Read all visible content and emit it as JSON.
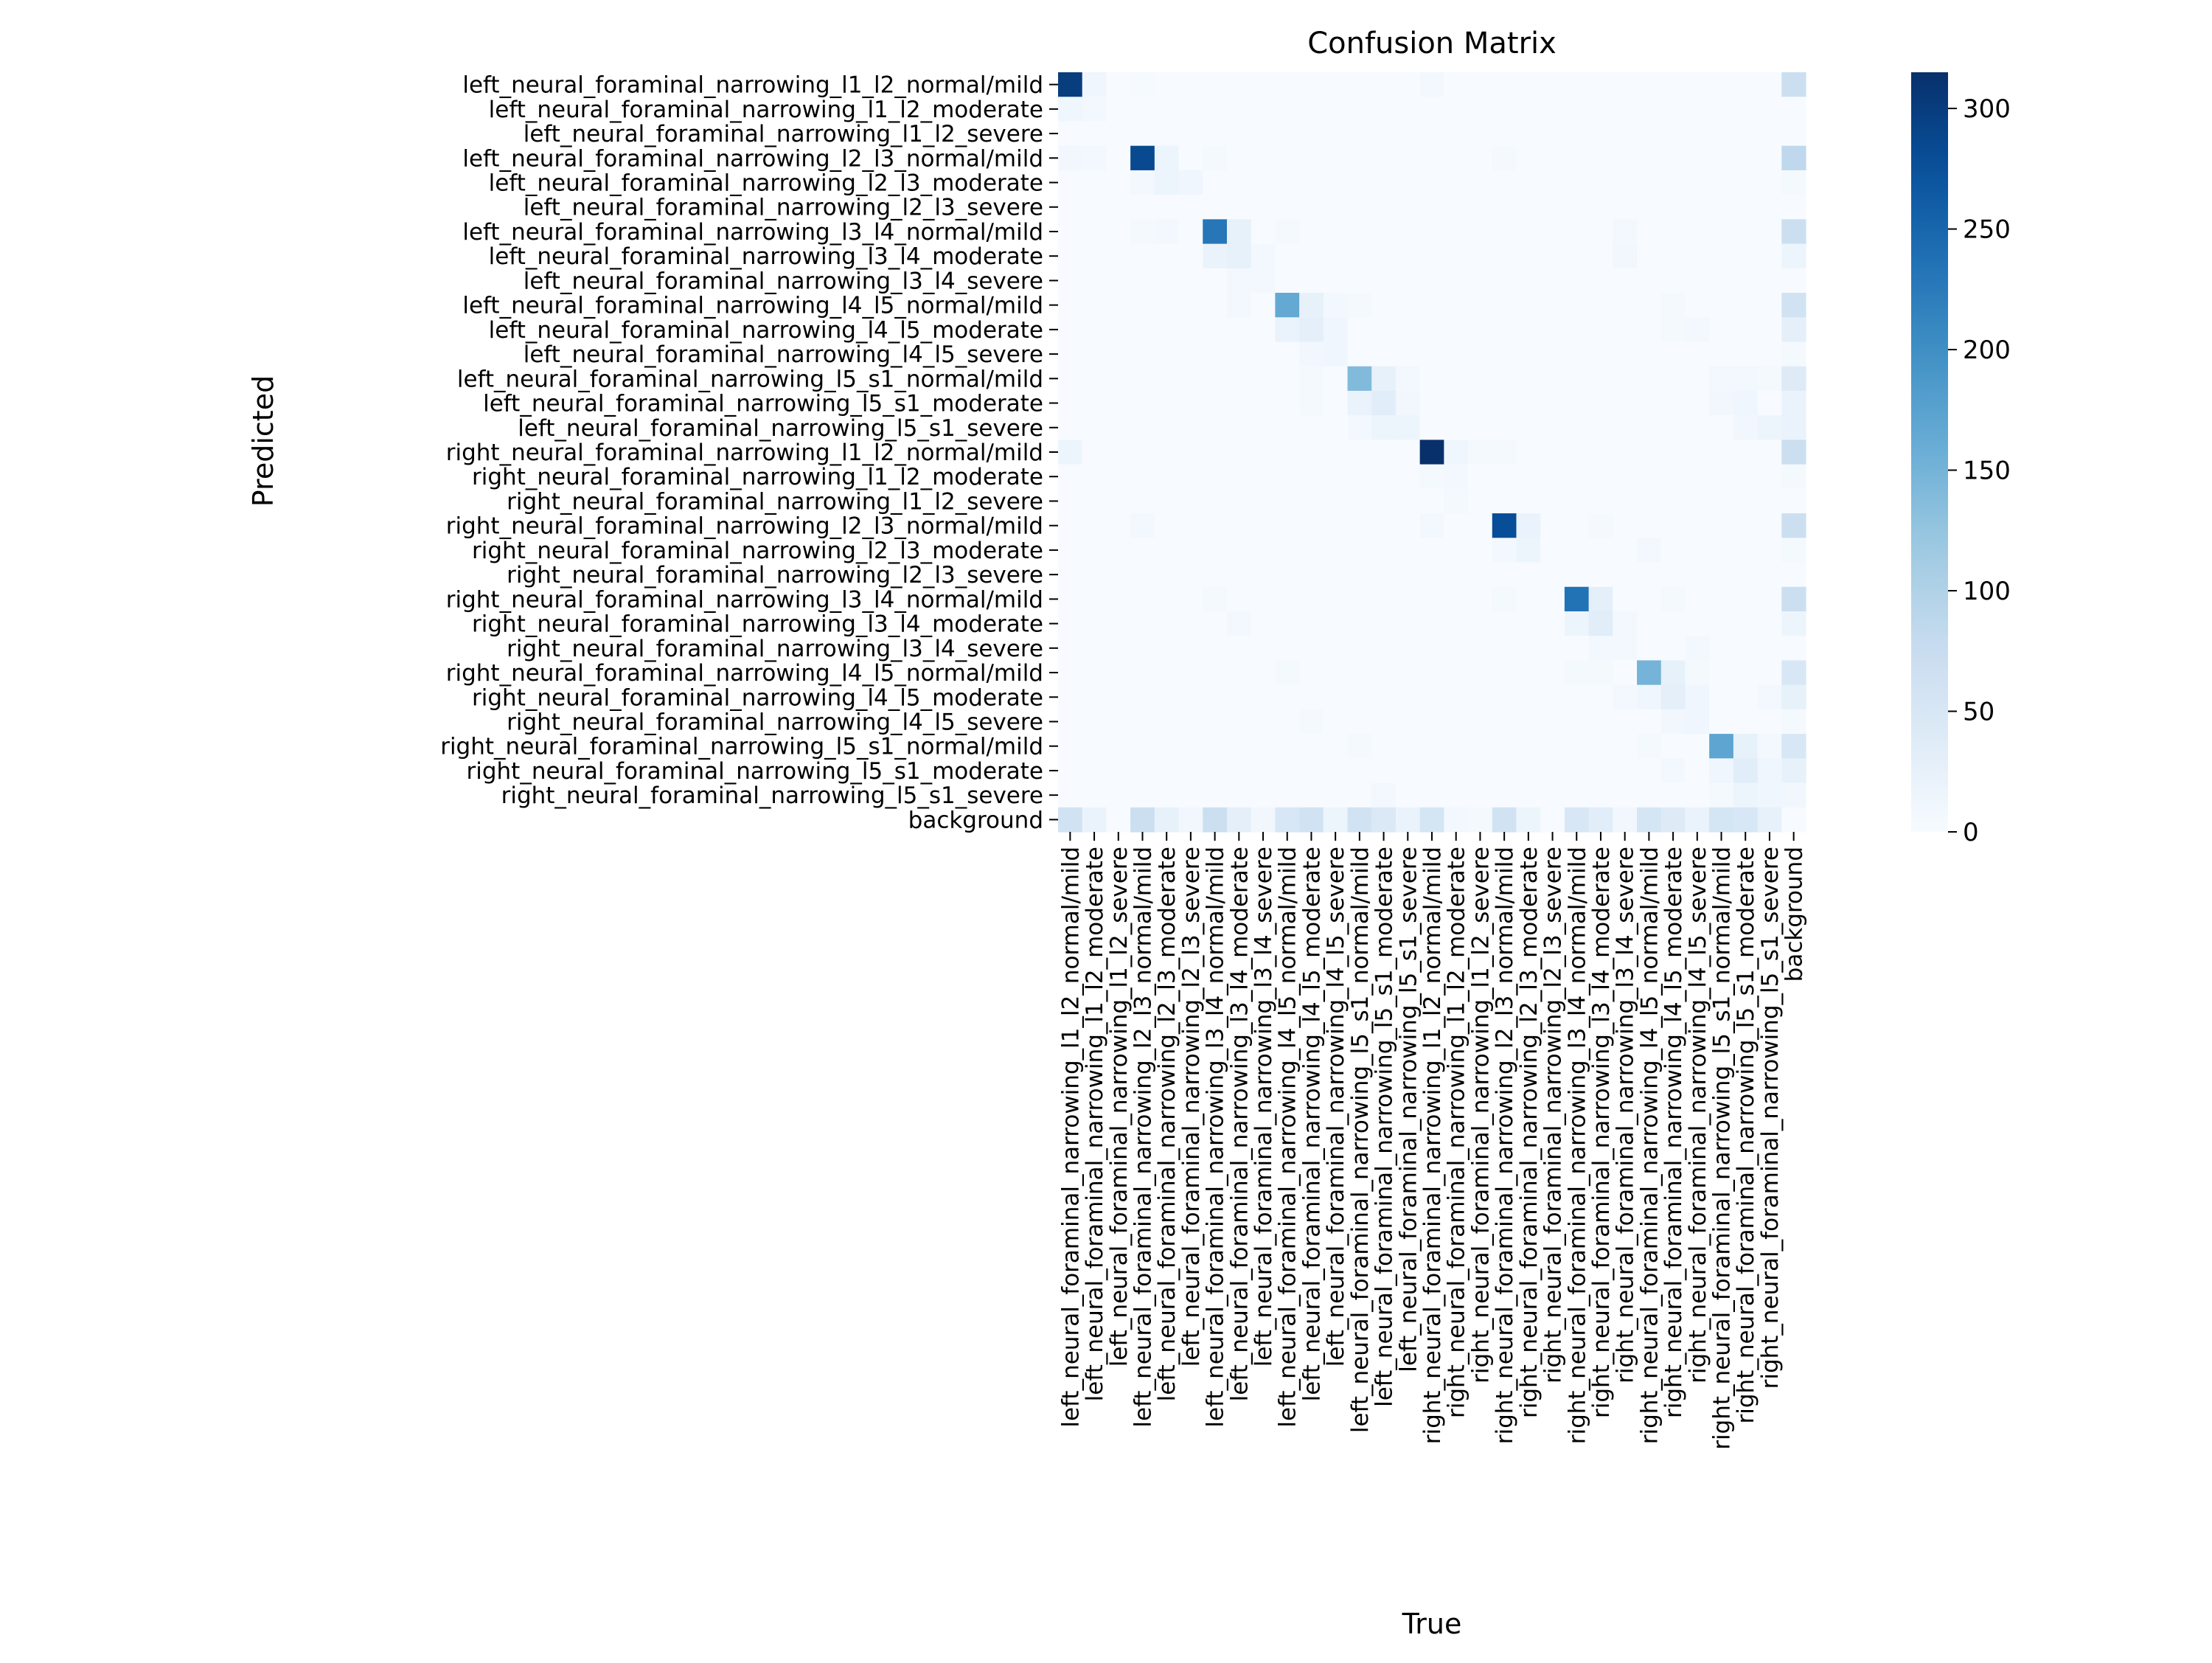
{
  "chart_data": {
    "type": "heatmap",
    "title": "Confusion Matrix",
    "xlabel": "True",
    "ylabel": "Predicted",
    "colormap": "Blues",
    "colors": {
      "low": "#f7fbff",
      "high": "#08306b"
    },
    "vmin": 0,
    "vmax": 315,
    "colorbar_ticks": [
      0,
      50,
      100,
      150,
      200,
      250,
      300
    ],
    "labels": [
      "left_neural_foraminal_narrowing_l1_l2_normal/mild",
      "left_neural_foraminal_narrowing_l1_l2_moderate",
      "left_neural_foraminal_narrowing_l1_l2_severe",
      "left_neural_foraminal_narrowing_l2_l3_normal/mild",
      "left_neural_foraminal_narrowing_l2_l3_moderate",
      "left_neural_foraminal_narrowing_l2_l3_severe",
      "left_neural_foraminal_narrowing_l3_l4_normal/mild",
      "left_neural_foraminal_narrowing_l3_l4_moderate",
      "left_neural_foraminal_narrowing_l3_l4_severe",
      "left_neural_foraminal_narrowing_l4_l5_normal/mild",
      "left_neural_foraminal_narrowing_l4_l5_moderate",
      "left_neural_foraminal_narrowing_l4_l5_severe",
      "left_neural_foraminal_narrowing_l5_s1_normal/mild",
      "left_neural_foraminal_narrowing_l5_s1_moderate",
      "left_neural_foraminal_narrowing_l5_s1_severe",
      "right_neural_foraminal_narrowing_l1_l2_normal/mild",
      "right_neural_foraminal_narrowing_l1_l2_moderate",
      "right_neural_foraminal_narrowing_l1_l2_severe",
      "right_neural_foraminal_narrowing_l2_l3_normal/mild",
      "right_neural_foraminal_narrowing_l2_l3_moderate",
      "right_neural_foraminal_narrowing_l2_l3_severe",
      "right_neural_foraminal_narrowing_l3_l4_normal/mild",
      "right_neural_foraminal_narrowing_l3_l4_moderate",
      "right_neural_foraminal_narrowing_l3_l4_severe",
      "right_neural_foraminal_narrowing_l4_l5_normal/mild",
      "right_neural_foraminal_narrowing_l4_l5_moderate",
      "right_neural_foraminal_narrowing_l4_l5_severe",
      "right_neural_foraminal_narrowing_l5_s1_normal/mild",
      "right_neural_foraminal_narrowing_l5_s1_moderate",
      "right_neural_foraminal_narrowing_l5_s1_severe",
      "background"
    ],
    "matrix": [
      [
        300,
        12,
        0,
        3,
        0,
        0,
        0,
        0,
        0,
        0,
        0,
        0,
        0,
        0,
        0,
        8,
        0,
        0,
        0,
        0,
        0,
        0,
        0,
        0,
        0,
        0,
        0,
        0,
        0,
        0,
        70
      ],
      [
        12,
        8,
        0,
        0,
        0,
        0,
        0,
        0,
        0,
        0,
        0,
        0,
        0,
        0,
        0,
        0,
        0,
        0,
        0,
        0,
        0,
        0,
        0,
        0,
        0,
        0,
        0,
        0,
        0,
        0,
        0
      ],
      [
        0,
        0,
        0,
        0,
        0,
        0,
        0,
        0,
        0,
        0,
        0,
        0,
        0,
        0,
        0,
        0,
        0,
        0,
        0,
        0,
        0,
        0,
        0,
        0,
        0,
        0,
        0,
        0,
        0,
        0,
        0
      ],
      [
        10,
        8,
        0,
        285,
        15,
        0,
        5,
        0,
        0,
        0,
        0,
        0,
        0,
        0,
        0,
        0,
        0,
        0,
        5,
        0,
        0,
        0,
        0,
        0,
        0,
        0,
        0,
        0,
        0,
        0,
        85
      ],
      [
        0,
        0,
        0,
        8,
        15,
        12,
        0,
        0,
        0,
        0,
        0,
        0,
        0,
        0,
        0,
        0,
        0,
        0,
        0,
        0,
        0,
        0,
        0,
        0,
        0,
        0,
        0,
        0,
        0,
        0,
        5
      ],
      [
        0,
        0,
        0,
        0,
        0,
        0,
        0,
        0,
        0,
        0,
        0,
        0,
        0,
        0,
        0,
        0,
        0,
        0,
        0,
        0,
        0,
        0,
        0,
        0,
        0,
        0,
        0,
        0,
        0,
        0,
        0
      ],
      [
        0,
        0,
        0,
        5,
        8,
        0,
        230,
        25,
        0,
        5,
        0,
        0,
        0,
        0,
        0,
        0,
        0,
        0,
        0,
        0,
        0,
        0,
        0,
        8,
        0,
        0,
        0,
        0,
        0,
        0,
        70
      ],
      [
        0,
        0,
        0,
        0,
        0,
        0,
        20,
        25,
        8,
        0,
        0,
        0,
        0,
        0,
        0,
        0,
        0,
        0,
        0,
        0,
        0,
        0,
        0,
        10,
        0,
        0,
        0,
        0,
        0,
        0,
        15
      ],
      [
        0,
        0,
        0,
        0,
        0,
        0,
        0,
        8,
        8,
        0,
        0,
        0,
        0,
        0,
        0,
        0,
        0,
        0,
        0,
        0,
        0,
        0,
        0,
        0,
        0,
        0,
        0,
        0,
        0,
        0,
        0
      ],
      [
        0,
        0,
        0,
        0,
        0,
        0,
        0,
        8,
        0,
        165,
        25,
        8,
        5,
        0,
        0,
        0,
        0,
        0,
        0,
        0,
        0,
        0,
        0,
        0,
        0,
        5,
        0,
        0,
        0,
        0,
        60
      ],
      [
        0,
        0,
        0,
        0,
        0,
        0,
        0,
        0,
        0,
        20,
        30,
        12,
        0,
        0,
        0,
        0,
        0,
        0,
        0,
        0,
        0,
        0,
        0,
        0,
        0,
        5,
        8,
        0,
        0,
        0,
        30
      ],
      [
        0,
        0,
        0,
        0,
        0,
        0,
        0,
        0,
        0,
        0,
        10,
        12,
        0,
        0,
        0,
        0,
        0,
        0,
        0,
        0,
        0,
        0,
        0,
        0,
        0,
        0,
        0,
        0,
        0,
        0,
        5
      ],
      [
        0,
        0,
        0,
        0,
        0,
        0,
        0,
        0,
        0,
        0,
        5,
        0,
        140,
        25,
        8,
        0,
        0,
        0,
        0,
        0,
        0,
        0,
        0,
        0,
        0,
        0,
        0,
        8,
        8,
        5,
        40
      ],
      [
        0,
        0,
        0,
        0,
        0,
        0,
        0,
        0,
        0,
        0,
        5,
        0,
        20,
        35,
        10,
        0,
        0,
        0,
        0,
        0,
        0,
        0,
        0,
        0,
        0,
        0,
        0,
        10,
        12,
        0,
        20
      ],
      [
        0,
        0,
        0,
        0,
        0,
        0,
        0,
        0,
        0,
        0,
        0,
        0,
        8,
        15,
        15,
        0,
        0,
        0,
        0,
        0,
        0,
        0,
        0,
        0,
        0,
        0,
        0,
        0,
        10,
        15,
        20
      ],
      [
        15,
        0,
        0,
        0,
        0,
        0,
        0,
        0,
        0,
        0,
        0,
        0,
        0,
        0,
        0,
        315,
        12,
        5,
        5,
        0,
        0,
        0,
        0,
        0,
        0,
        0,
        0,
        0,
        0,
        0,
        70
      ],
      [
        0,
        0,
        0,
        0,
        0,
        0,
        0,
        0,
        0,
        0,
        0,
        0,
        0,
        0,
        0,
        5,
        8,
        0,
        0,
        0,
        0,
        0,
        0,
        0,
        0,
        0,
        0,
        0,
        0,
        0,
        5
      ],
      [
        0,
        0,
        0,
        0,
        0,
        0,
        0,
        0,
        0,
        0,
        0,
        0,
        0,
        0,
        0,
        0,
        5,
        0,
        0,
        0,
        0,
        0,
        0,
        0,
        0,
        0,
        0,
        0,
        0,
        0,
        0
      ],
      [
        0,
        0,
        0,
        8,
        0,
        0,
        0,
        0,
        0,
        0,
        0,
        0,
        0,
        0,
        0,
        8,
        0,
        0,
        280,
        20,
        0,
        0,
        5,
        0,
        0,
        0,
        0,
        0,
        0,
        0,
        70
      ],
      [
        0,
        0,
        0,
        0,
        0,
        0,
        0,
        0,
        0,
        0,
        0,
        0,
        0,
        0,
        0,
        0,
        0,
        0,
        8,
        15,
        0,
        0,
        0,
        0,
        8,
        0,
        0,
        0,
        0,
        0,
        5
      ],
      [
        0,
        0,
        0,
        0,
        0,
        0,
        0,
        0,
        0,
        0,
        0,
        0,
        0,
        0,
        0,
        0,
        0,
        0,
        0,
        0,
        0,
        0,
        0,
        0,
        0,
        0,
        0,
        0,
        0,
        0,
        0
      ],
      [
        0,
        0,
        0,
        0,
        0,
        0,
        5,
        0,
        0,
        0,
        0,
        0,
        0,
        0,
        0,
        0,
        0,
        0,
        5,
        0,
        0,
        235,
        30,
        0,
        0,
        5,
        0,
        0,
        0,
        0,
        70
      ],
      [
        0,
        0,
        0,
        0,
        0,
        0,
        0,
        8,
        0,
        0,
        0,
        0,
        0,
        0,
        0,
        0,
        0,
        0,
        0,
        0,
        0,
        15,
        35,
        8,
        0,
        0,
        0,
        0,
        0,
        0,
        15
      ],
      [
        0,
        0,
        0,
        0,
        0,
        0,
        0,
        0,
        0,
        0,
        0,
        0,
        0,
        0,
        0,
        0,
        0,
        0,
        0,
        0,
        0,
        0,
        8,
        8,
        0,
        0,
        8,
        0,
        0,
        0,
        0
      ],
      [
        0,
        0,
        0,
        0,
        0,
        0,
        0,
        0,
        0,
        5,
        0,
        0,
        0,
        0,
        0,
        0,
        0,
        0,
        0,
        0,
        0,
        5,
        5,
        0,
        150,
        25,
        5,
        0,
        0,
        0,
        50
      ],
      [
        0,
        0,
        0,
        0,
        0,
        0,
        0,
        0,
        0,
        0,
        0,
        0,
        0,
        0,
        0,
        0,
        0,
        0,
        0,
        0,
        0,
        0,
        0,
        8,
        12,
        30,
        12,
        0,
        0,
        8,
        25
      ],
      [
        0,
        0,
        0,
        0,
        0,
        0,
        0,
        0,
        0,
        0,
        5,
        0,
        0,
        0,
        0,
        0,
        0,
        0,
        0,
        0,
        0,
        0,
        0,
        0,
        0,
        10,
        12,
        0,
        0,
        0,
        5
      ],
      [
        0,
        0,
        0,
        0,
        0,
        0,
        0,
        0,
        0,
        0,
        0,
        0,
        5,
        0,
        0,
        0,
        0,
        0,
        0,
        0,
        0,
        0,
        0,
        0,
        5,
        0,
        0,
        170,
        25,
        8,
        50
      ],
      [
        0,
        0,
        0,
        0,
        0,
        0,
        0,
        0,
        0,
        0,
        0,
        0,
        0,
        0,
        0,
        0,
        0,
        0,
        0,
        0,
        0,
        0,
        0,
        0,
        0,
        8,
        0,
        12,
        35,
        12,
        25
      ],
      [
        0,
        0,
        0,
        0,
        0,
        0,
        0,
        0,
        0,
        0,
        0,
        0,
        0,
        8,
        0,
        0,
        0,
        0,
        0,
        0,
        0,
        0,
        0,
        0,
        0,
        0,
        0,
        5,
        15,
        12,
        10
      ],
      [
        60,
        20,
        0,
        70,
        25,
        10,
        70,
        30,
        10,
        50,
        60,
        15,
        60,
        45,
        20,
        55,
        8,
        5,
        60,
        15,
        0,
        50,
        35,
        10,
        55,
        40,
        20,
        55,
        50,
        25,
        0
      ]
    ]
  }
}
